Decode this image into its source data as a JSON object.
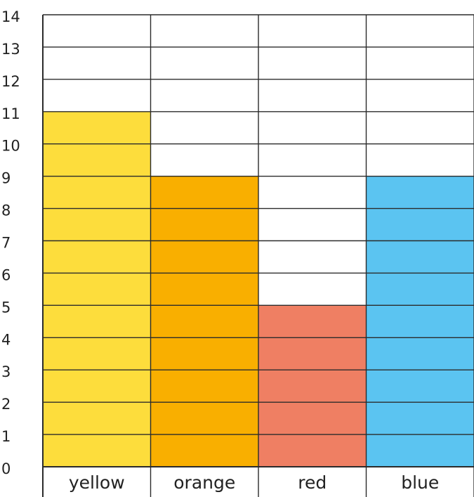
{
  "chart_data": {
    "type": "bar",
    "categories": [
      "yellow",
      "orange",
      "red",
      "blue"
    ],
    "values": [
      11,
      9,
      5,
      9
    ],
    "colors": [
      "#FDDD3C",
      "#F9AF00",
      "#EF7F63",
      "#5BC4F1"
    ],
    "ylim": [
      0,
      14
    ],
    "yticks": [
      "0",
      "1",
      "2",
      "3",
      "4",
      "5",
      "6",
      "7",
      "8",
      "9",
      "10",
      "11",
      "12",
      "13",
      "14"
    ],
    "grid": true
  }
}
